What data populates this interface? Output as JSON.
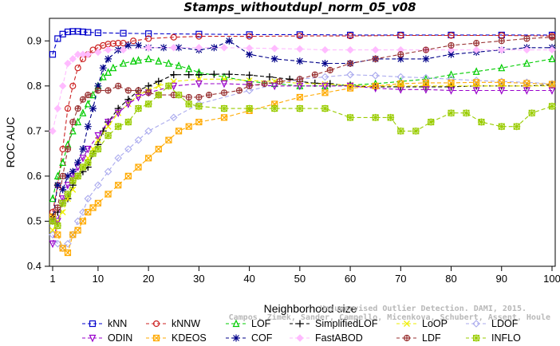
{
  "chart_data": {
    "type": "line",
    "title": "Stamps_withoutdupl_norm_05_v08",
    "xlabel": "Neighborhood size",
    "ylabel": "ROC AUC",
    "xlim": [
      1,
      100
    ],
    "ylim": [
      0.4,
      0.95
    ],
    "xticks": [
      1,
      10,
      20,
      30,
      40,
      50,
      60,
      70,
      80,
      90,
      100
    ],
    "yticks": [
      0.4,
      0.5,
      0.6,
      0.7,
      0.8,
      0.9
    ],
    "grid": false,
    "legend_position": "bottom",
    "watermark": [
      "Campos, Zimek, Sander, Campello, Micenkova, Schubert, Assent, Houle",
      "Unsupervised Outlier Detection. DAMI, 2015."
    ],
    "series": [
      {
        "name": "kNN",
        "color": "#0000cc",
        "marker": "square",
        "dash": "5,3",
        "x": [
          1,
          2,
          3,
          4,
          5,
          6,
          7,
          8,
          10,
          15,
          20,
          30,
          40,
          50,
          60,
          70,
          80,
          90,
          100
        ],
        "y": [
          0.87,
          0.905,
          0.915,
          0.92,
          0.921,
          0.921,
          0.92,
          0.919,
          0.918,
          0.917,
          0.916,
          0.915,
          0.914,
          0.914,
          0.913,
          0.913,
          0.913,
          0.913,
          0.913
        ]
      },
      {
        "name": "kNNW",
        "color": "#cc2222",
        "marker": "circle",
        "dash": "5,3",
        "x": [
          1,
          2,
          3,
          4,
          5,
          6,
          7,
          8,
          9,
          10,
          11,
          12,
          13,
          14,
          15,
          17,
          20,
          25,
          30,
          40,
          50,
          60,
          70,
          80,
          90,
          100
        ],
        "y": [
          0.52,
          0.58,
          0.66,
          0.75,
          0.8,
          0.84,
          0.86,
          0.87,
          0.88,
          0.885,
          0.89,
          0.893,
          0.894,
          0.895,
          0.895,
          0.9,
          0.905,
          0.908,
          0.91,
          0.91,
          0.911,
          0.911,
          0.912,
          0.912,
          0.912,
          0.911
        ]
      },
      {
        "name": "LOF",
        "color": "#00cc00",
        "marker": "triangle",
        "dash": "5,3",
        "x": [
          1,
          2,
          3,
          4,
          5,
          6,
          7,
          8,
          9,
          10,
          11,
          12,
          13,
          15,
          17,
          18,
          20,
          22,
          24,
          26,
          28,
          30,
          35,
          40,
          45,
          50,
          55,
          60,
          65,
          70,
          75,
          80,
          85,
          90,
          95,
          100
        ],
        "y": [
          0.55,
          0.6,
          0.63,
          0.67,
          0.7,
          0.72,
          0.74,
          0.76,
          0.78,
          0.8,
          0.82,
          0.83,
          0.84,
          0.85,
          0.855,
          0.857,
          0.86,
          0.855,
          0.85,
          0.845,
          0.838,
          0.83,
          0.82,
          0.81,
          0.805,
          0.8,
          0.8,
          0.802,
          0.805,
          0.81,
          0.815,
          0.825,
          0.832,
          0.84,
          0.85,
          0.86
        ]
      },
      {
        "name": "SimplifiedLOF",
        "color": "#000000",
        "marker": "plus",
        "dash": "5,3",
        "x": [
          1,
          2,
          3,
          4,
          5,
          6,
          7,
          8,
          9,
          10,
          11,
          12,
          14,
          16,
          18,
          20,
          22,
          25,
          28,
          30,
          33,
          36,
          40,
          44,
          48,
          50,
          53,
          56,
          60,
          65,
          70,
          75,
          80,
          85,
          90,
          95,
          100
        ],
        "y": [
          0.51,
          0.52,
          0.54,
          0.55,
          0.58,
          0.6,
          0.61,
          0.62,
          0.65,
          0.67,
          0.7,
          0.72,
          0.75,
          0.77,
          0.79,
          0.8,
          0.81,
          0.825,
          0.825,
          0.825,
          0.826,
          0.826,
          0.824,
          0.82,
          0.815,
          0.81,
          0.806,
          0.805,
          0.8,
          0.798,
          0.798,
          0.798,
          0.798,
          0.8,
          0.8,
          0.8,
          0.802
        ]
      },
      {
        "name": "LoOP",
        "color": "#eeee00",
        "marker": "cross",
        "dash": "5,3",
        "x": [
          1,
          2,
          3,
          4,
          5,
          6,
          7,
          8,
          9,
          10,
          12,
          14,
          16,
          18,
          20,
          22,
          25,
          30,
          35,
          40,
          45,
          50,
          55,
          60,
          65,
          70,
          75,
          80,
          85,
          90,
          95,
          100
        ],
        "y": [
          0.48,
          0.5,
          0.52,
          0.55,
          0.57,
          0.6,
          0.62,
          0.64,
          0.66,
          0.68,
          0.71,
          0.74,
          0.76,
          0.78,
          0.79,
          0.8,
          0.81,
          0.815,
          0.815,
          0.812,
          0.81,
          0.806,
          0.804,
          0.802,
          0.8,
          0.8,
          0.8,
          0.8,
          0.8,
          0.8,
          0.8,
          0.8
        ]
      },
      {
        "name": "LDOF",
        "color": "#aaaaee",
        "marker": "diamond",
        "dash": "5,3",
        "x": [
          1,
          2,
          3,
          4,
          5,
          6,
          7,
          8,
          10,
          12,
          14,
          16,
          18,
          20,
          25,
          30,
          40,
          50,
          55,
          60,
          65,
          70,
          75,
          80,
          85,
          90,
          95,
          100
        ],
        "y": [
          0.47,
          0.45,
          0.44,
          0.45,
          0.47,
          0.5,
          0.52,
          0.55,
          0.58,
          0.61,
          0.64,
          0.66,
          0.68,
          0.7,
          0.73,
          0.76,
          0.79,
          0.815,
          0.82,
          0.825,
          0.823,
          0.82,
          0.818,
          0.815,
          0.812,
          0.81,
          0.808,
          0.805
        ]
      },
      {
        "name": "ODIN",
        "color": "#9900cc",
        "marker": "triangle-down",
        "dash": "5,3",
        "x": [
          1,
          2,
          3,
          4,
          5,
          6,
          7,
          8,
          10,
          12,
          14,
          16,
          18,
          20,
          25,
          30,
          35,
          40,
          45,
          50,
          55,
          60,
          65,
          70,
          75,
          80,
          85,
          90,
          95,
          100
        ],
        "y": [
          0.45,
          0.5,
          0.55,
          0.58,
          0.6,
          0.62,
          0.64,
          0.66,
          0.69,
          0.72,
          0.74,
          0.76,
          0.775,
          0.785,
          0.8,
          0.805,
          0.805,
          0.803,
          0.8,
          0.8,
          0.8,
          0.8,
          0.795,
          0.792,
          0.792,
          0.79,
          0.79,
          0.79,
          0.79,
          0.79
        ]
      },
      {
        "name": "KDEOS",
        "color": "#ffaa00",
        "marker": "square-x",
        "dash": "5,3",
        "x": [
          1,
          2,
          3,
          4,
          5,
          6,
          7,
          8,
          9,
          10,
          12,
          14,
          16,
          18,
          20,
          22,
          24,
          26,
          28,
          30,
          35,
          40,
          45,
          50,
          55,
          60,
          65,
          70,
          75,
          80,
          85,
          90,
          95,
          100
        ],
        "y": [
          0.51,
          0.47,
          0.44,
          0.43,
          0.47,
          0.48,
          0.5,
          0.52,
          0.53,
          0.54,
          0.56,
          0.58,
          0.6,
          0.62,
          0.64,
          0.66,
          0.68,
          0.7,
          0.71,
          0.72,
          0.73,
          0.745,
          0.76,
          0.775,
          0.785,
          0.795,
          0.8,
          0.805,
          0.807,
          0.807,
          0.808,
          0.808,
          0.806,
          0.804
        ]
      },
      {
        "name": "COF",
        "color": "#000088",
        "marker": "star",
        "dash": "5,3",
        "x": [
          1,
          2,
          3,
          4,
          5,
          6,
          7,
          8,
          9,
          10,
          11,
          12,
          14,
          16,
          18,
          20,
          23,
          26,
          30,
          33,
          36,
          40,
          45,
          50,
          55,
          60,
          65,
          70,
          75,
          80,
          85,
          90,
          95,
          100
        ],
        "y": [
          0.5,
          0.58,
          0.57,
          0.6,
          0.61,
          0.63,
          0.66,
          0.71,
          0.75,
          0.8,
          0.84,
          0.86,
          0.88,
          0.89,
          0.89,
          0.885,
          0.885,
          0.885,
          0.88,
          0.885,
          0.9,
          0.87,
          0.86,
          0.855,
          0.85,
          0.85,
          0.86,
          0.86,
          0.86,
          0.87,
          0.875,
          0.88,
          0.885,
          0.885
        ]
      },
      {
        "name": "FastABOD",
        "color": "#ffbbff",
        "marker": "diamond-filled",
        "dash": "5,3",
        "x": [
          1,
          2,
          3,
          4,
          5,
          6,
          7,
          8,
          10,
          12,
          15,
          20,
          25,
          30,
          35,
          40,
          45,
          50,
          55,
          60,
          65,
          70,
          75,
          80,
          85,
          90,
          95,
          100
        ],
        "y": [
          0.7,
          0.75,
          0.8,
          0.85,
          0.86,
          0.87,
          0.87,
          0.87,
          0.875,
          0.88,
          0.88,
          0.885,
          0.885,
          0.885,
          0.885,
          0.884,
          0.883,
          0.882,
          0.88,
          0.88,
          0.88,
          0.88,
          0.88,
          0.88,
          0.88,
          0.88,
          0.88,
          0.88
        ]
      },
      {
        "name": "LDF",
        "color": "#993333",
        "marker": "circle-plus",
        "dash": "5,3",
        "x": [
          1,
          2,
          3,
          4,
          5,
          6,
          7,
          8,
          10,
          12,
          14,
          16,
          18,
          20,
          22,
          25,
          28,
          30,
          32,
          35,
          38,
          40,
          43,
          46,
          50,
          53,
          56,
          60,
          65,
          70,
          75,
          80,
          85,
          90,
          95,
          100
        ],
        "y": [
          0.5,
          0.53,
          0.6,
          0.66,
          0.72,
          0.75,
          0.77,
          0.78,
          0.79,
          0.79,
          0.8,
          0.79,
          0.79,
          0.785,
          0.78,
          0.78,
          0.775,
          0.775,
          0.78,
          0.785,
          0.79,
          0.8,
          0.805,
          0.81,
          0.815,
          0.825,
          0.835,
          0.85,
          0.86,
          0.87,
          0.88,
          0.89,
          0.895,
          0.9,
          0.905,
          0.908
        ]
      },
      {
        "name": "INFLO",
        "color": "#99cc00",
        "marker": "star-square",
        "dash": "5,3",
        "x": [
          1,
          2,
          3,
          4,
          5,
          6,
          7,
          8,
          9,
          10,
          12,
          14,
          16,
          18,
          20,
          22,
          24,
          26,
          28,
          30,
          35,
          40,
          45,
          50,
          55,
          60,
          65,
          68,
          70,
          73,
          76,
          80,
          83,
          86,
          90,
          93,
          96,
          100
        ],
        "y": [
          0.5,
          0.49,
          0.54,
          0.56,
          0.59,
          0.6,
          0.62,
          0.63,
          0.65,
          0.66,
          0.69,
          0.71,
          0.72,
          0.75,
          0.76,
          0.78,
          0.8,
          0.78,
          0.76,
          0.755,
          0.75,
          0.75,
          0.75,
          0.75,
          0.75,
          0.73,
          0.73,
          0.73,
          0.7,
          0.7,
          0.72,
          0.74,
          0.74,
          0.72,
          0.71,
          0.71,
          0.74,
          0.755
        ]
      }
    ],
    "legend_rows": [
      [
        "kNN",
        "kNNW",
        "LOF",
        "SimplifiedLOF",
        "LoOP",
        "LDOF"
      ],
      [
        "ODIN",
        "KDEOS",
        "COF",
        "FastABOD",
        "LDF",
        "INFLO"
      ]
    ]
  }
}
